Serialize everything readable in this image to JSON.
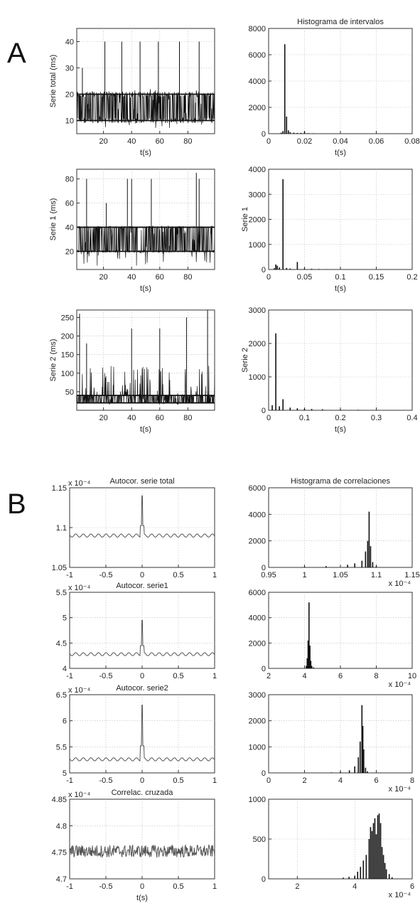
{
  "panel_labels": [
    "A",
    "B"
  ],
  "chart_data": [
    {
      "id": "a_total",
      "type": "line",
      "title": "",
      "xlabel": "t(s)",
      "ylabel": "Serie total  (ms)",
      "xlim": [
        1,
        99
      ],
      "ylim": [
        5,
        45
      ],
      "xticks": [
        20,
        40,
        60,
        80
      ],
      "yticks": [
        10,
        20,
        30,
        40
      ],
      "grid": true,
      "series": [
        {
          "levels": [
            10,
            20
          ],
          "spikes": [
            [
              5,
              30
            ],
            [
              21,
              40
            ],
            [
              33,
              40
            ],
            [
              46,
              40
            ],
            [
              59,
              40
            ],
            [
              74,
              40
            ],
            [
              88,
              40
            ]
          ],
          "band": [
            7,
            22
          ]
        }
      ],
      "color": "#111111"
    },
    {
      "id": "a_hist_total",
      "type": "bar",
      "title": "Histograma de intervalos",
      "xlabel": "t(s)",
      "ylabel": "",
      "xlim": [
        0,
        0.08
      ],
      "ylim": [
        0,
        8000
      ],
      "xticks": [
        0,
        0.02,
        0.04,
        0.06,
        0.08
      ],
      "yticks": [
        0,
        2000,
        4000,
        6000,
        8000
      ],
      "grid": true,
      "x": [
        0.007,
        0.008,
        0.009,
        0.01,
        0.011,
        0.012,
        0.014,
        0.016,
        0.018,
        0.02,
        0.022,
        0.025,
        0.03
      ],
      "values": [
        80,
        200,
        6800,
        1300,
        250,
        120,
        80,
        60,
        60,
        150,
        40,
        30,
        20
      ],
      "color": "#111111"
    },
    {
      "id": "a_s1",
      "type": "line",
      "title": "",
      "xlabel": "t(s)",
      "ylabel": "Serie 1  (ms)",
      "xlim": [
        1,
        99
      ],
      "ylim": [
        5,
        88
      ],
      "xticks": [
        20,
        40,
        60,
        80
      ],
      "yticks": [
        20,
        40,
        60,
        80
      ],
      "grid": true,
      "series": [
        {
          "levels": [
            20,
            40
          ],
          "spikes": [
            [
              8,
              80
            ],
            [
              22,
              60
            ],
            [
              37,
              80
            ],
            [
              40,
              80
            ],
            [
              54,
              80
            ],
            [
              86,
              85
            ],
            [
              88,
              80
            ]
          ],
          "band": [
            8,
            42
          ]
        }
      ],
      "color": "#111111"
    },
    {
      "id": "a_hist_s1",
      "type": "bar",
      "title": "",
      "xlabel": "t(s)",
      "ylabel": "Serie 1",
      "xlim": [
        0,
        0.2
      ],
      "ylim": [
        0,
        4000
      ],
      "xticks": [
        0,
        0.05,
        0.1,
        0.15,
        0.2
      ],
      "yticks": [
        0,
        1000,
        2000,
        3000,
        4000
      ],
      "grid": true,
      "x": [
        0.008,
        0.01,
        0.012,
        0.015,
        0.02,
        0.025,
        0.03,
        0.04,
        0.05,
        0.06,
        0.07,
        0.08,
        0.1
      ],
      "values": [
        50,
        200,
        150,
        80,
        3600,
        60,
        40,
        300,
        40,
        30,
        20,
        15,
        10
      ],
      "color": "#111111"
    },
    {
      "id": "a_s2",
      "type": "line",
      "title": "",
      "xlabel": "t(s)",
      "ylabel": "Serie 2  (ms)",
      "xlim": [
        1,
        99
      ],
      "ylim": [
        0,
        270
      ],
      "xticks": [
        20,
        40,
        60,
        80
      ],
      "yticks": [
        50,
        100,
        150,
        200,
        250
      ],
      "grid": true,
      "series": [
        {
          "levels": [
            20,
            40
          ],
          "spikes": [
            [
              3,
              260
            ],
            [
              8,
              180
            ],
            [
              40,
              220
            ],
            [
              60,
              220
            ],
            [
              79,
              250
            ],
            [
              94,
              270
            ]
          ],
          "band": [
            15,
            120
          ]
        }
      ],
      "color": "#111111"
    },
    {
      "id": "a_hist_s2",
      "type": "bar",
      "title": "",
      "xlabel": "t(s)",
      "ylabel": "Serie 2",
      "xlim": [
        0,
        0.4
      ],
      "ylim": [
        0,
        3000
      ],
      "xticks": [
        0,
        0.1,
        0.2,
        0.3,
        0.4
      ],
      "yticks": [
        0,
        1000,
        2000,
        3000
      ],
      "grid": true,
      "x": [
        0.01,
        0.02,
        0.03,
        0.04,
        0.06,
        0.08,
        0.1,
        0.12,
        0.15,
        0.2,
        0.25,
        0.3
      ],
      "values": [
        150,
        2300,
        120,
        330,
        80,
        60,
        50,
        40,
        30,
        20,
        15,
        10
      ],
      "color": "#111111"
    },
    {
      "id": "b_autocorr_total",
      "type": "line",
      "title": "Autocor. serie total",
      "xlabel": "",
      "ylabel": "",
      "exponent": "x 10⁻⁴",
      "xlim": [
        -1,
        1
      ],
      "ylim": [
        1.05,
        1.15
      ],
      "xticks": [
        -1,
        -0.5,
        0,
        0.5,
        1
      ],
      "yticks": [
        1.05,
        1.1,
        1.15
      ],
      "grid": true,
      "series": [
        {
          "baseline": 1.09,
          "ripple": 0.002,
          "peak": 1.14,
          "noise": 0
        }
      ],
      "color": "#555555"
    },
    {
      "id": "b_hist_corr_total",
      "type": "bar",
      "title": "Histograma de correlaciones",
      "xlabel": "",
      "ylabel": "",
      "exponent": "x 10⁻⁴",
      "xlim": [
        0.95,
        1.15
      ],
      "ylim": [
        0,
        6000
      ],
      "xticks": [
        0.95,
        1,
        1.05,
        1.1,
        1.15
      ],
      "yticks": [
        0,
        2000,
        4000,
        6000
      ],
      "grid": true,
      "x": [
        1.0,
        1.03,
        1.06,
        1.07,
        1.08,
        1.085,
        1.088,
        1.09,
        1.092,
        1.095,
        1.1
      ],
      "values": [
        60,
        100,
        200,
        300,
        500,
        1200,
        2000,
        4200,
        1600,
        400,
        100
      ],
      "color": "#111111"
    },
    {
      "id": "b_autocorr_s1",
      "type": "line",
      "title": "Autocor. serie1",
      "xlabel": "",
      "ylabel": "",
      "exponent": "x 10⁻⁴",
      "xlim": [
        -1,
        1
      ],
      "ylim": [
        4,
        5.5
      ],
      "xticks": [
        -1,
        -0.5,
        0,
        0.5,
        1
      ],
      "yticks": [
        4,
        4.5,
        5,
        5.5
      ],
      "grid": true,
      "series": [
        {
          "baseline": 4.28,
          "ripple": 0.03,
          "peak": 4.95,
          "noise": 0
        }
      ],
      "color": "#555555"
    },
    {
      "id": "b_hist_corr_s1",
      "type": "bar",
      "title": "",
      "xlabel": "",
      "ylabel": "",
      "exponent": "x 10⁻⁴",
      "xlim": [
        2,
        10
      ],
      "ylim": [
        0,
        6000
      ],
      "xticks": [
        2,
        4,
        6,
        8,
        10
      ],
      "yticks": [
        0,
        2000,
        4000,
        6000
      ],
      "grid": true,
      "x": [
        4.1,
        4.15,
        4.2,
        4.25,
        4.3,
        4.35,
        4.4,
        4.5
      ],
      "values": [
        200,
        800,
        2200,
        5200,
        1800,
        600,
        200,
        80
      ],
      "color": "#111111"
    },
    {
      "id": "b_autocorr_s2",
      "type": "line",
      "title": "Autocor. serie2",
      "xlabel": "",
      "ylabel": "",
      "exponent": "x 10⁻⁴",
      "xlim": [
        -1,
        1
      ],
      "ylim": [
        5,
        6.5
      ],
      "xticks": [
        -1,
        -0.5,
        0,
        0.5,
        1
      ],
      "yticks": [
        5,
        5.5,
        6,
        6.5
      ],
      "grid": true,
      "series": [
        {
          "baseline": 5.26,
          "ripple": 0.03,
          "peak": 6.3,
          "noise": 0
        }
      ],
      "color": "#555555"
    },
    {
      "id": "b_hist_corr_s2",
      "type": "bar",
      "title": "",
      "xlabel": "",
      "ylabel": "",
      "exponent": "x 10⁻⁴",
      "xlim": [
        0,
        8
      ],
      "ylim": [
        0,
        3000
      ],
      "xticks": [
        0,
        2,
        4,
        6,
        8
      ],
      "yticks": [
        0,
        1000,
        2000,
        3000
      ],
      "grid": true,
      "x": [
        3.5,
        4.0,
        4.5,
        4.8,
        5.0,
        5.1,
        5.2,
        5.25,
        5.3,
        5.4,
        5.5
      ],
      "values": [
        20,
        40,
        100,
        250,
        600,
        1200,
        2600,
        1800,
        900,
        200,
        60
      ],
      "color": "#111111"
    },
    {
      "id": "b_crosscorr",
      "type": "line",
      "title": "Correlac. cruzada",
      "xlabel": "t(s)",
      "ylabel": "",
      "exponent": "x 10⁻⁴",
      "xlim": [
        -1,
        1
      ],
      "ylim": [
        4.7,
        4.85
      ],
      "xticks": [
        -1,
        -0.5,
        0,
        0.5,
        1
      ],
      "yticks": [
        4.7,
        4.75,
        4.8,
        4.85
      ],
      "grid": true,
      "series": [
        {
          "baseline": 4.752,
          "ripple": 0,
          "peak": null,
          "noise": 0.012
        }
      ],
      "color": "#555555"
    },
    {
      "id": "b_hist_cross",
      "type": "bar",
      "title": "",
      "xlabel": "",
      "ylabel": "",
      "exponent": "x 10⁻⁴",
      "xlim": [
        1,
        6
      ],
      "ylim": [
        0,
        1000
      ],
      "xticks": [
        2,
        4,
        6
      ],
      "yticks": [
        0,
        500,
        1000
      ],
      "grid": true,
      "x": [
        3.6,
        3.8,
        4.0,
        4.1,
        4.2,
        4.3,
        4.4,
        4.5,
        4.55,
        4.6,
        4.65,
        4.7,
        4.75,
        4.8,
        4.85,
        4.9,
        4.95,
        5.0,
        5.05,
        5.1,
        5.2,
        5.3
      ],
      "values": [
        15,
        25,
        40,
        90,
        150,
        230,
        300,
        500,
        650,
        600,
        700,
        760,
        560,
        800,
        820,
        700,
        400,
        300,
        200,
        120,
        60,
        20
      ],
      "color": "#111111"
    }
  ]
}
